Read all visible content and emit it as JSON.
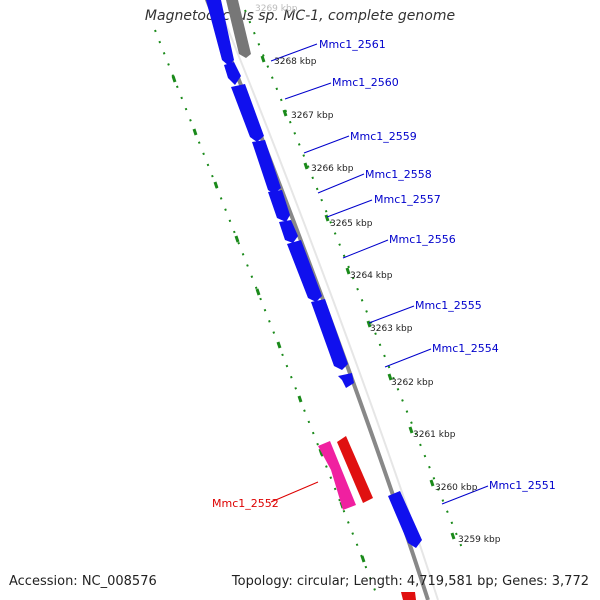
{
  "title": "Magnetococcus sp. MC-1, complete genome",
  "accession_text": "Accession: NC_008576",
  "summary_text": "Topology: circular; Length: 4,719,581 bp; Genes: 3,772",
  "colors": {
    "forward_gene": "#1010ee",
    "reverse_gene": "#e01010",
    "pink_gene": "#f020a0",
    "gray_gene": "#777777",
    "backbone": "#888888",
    "tick": "#1a8a1a",
    "label_blue": "#0000cc",
    "label_red": "#dd0000"
  },
  "scale_ticks": [
    "3269 kbp",
    "3268 kbp",
    "3267 kbp",
    "3266 kbp",
    "3265 kbp",
    "3264 kbp",
    "3263 kbp",
    "3262 kbp",
    "3261 kbp",
    "3260 kbp",
    "3259 kbp"
  ],
  "gene_labels": [
    "Mmc1_2561",
    "Mmc1_2560",
    "Mmc1_2559",
    "Mmc1_2558",
    "Mmc1_2557",
    "Mmc1_2556",
    "Mmc1_2555",
    "Mmc1_2554",
    "Mmc1_2551",
    "Mmc1_2552"
  ]
}
